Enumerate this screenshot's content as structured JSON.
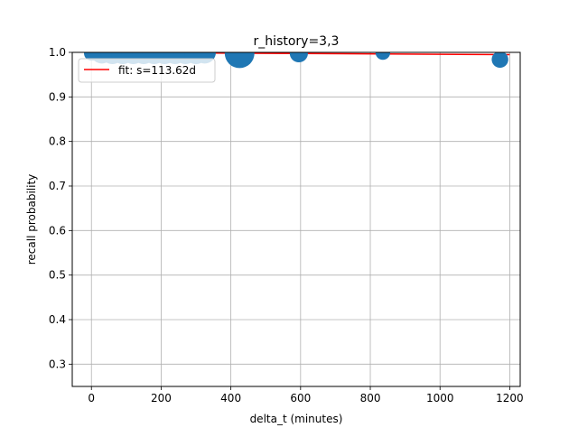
{
  "chart_data": {
    "type": "scatter",
    "title": "r_history=3,3",
    "xlabel": "delta_t (minutes)",
    "ylabel": "recall probability",
    "xlim": [
      -55,
      1230
    ],
    "ylim": [
      0.25,
      1.0
    ],
    "x_ticks": [
      0,
      200,
      400,
      600,
      800,
      1000,
      1200
    ],
    "x_tick_labels": [
      "0",
      "200",
      "400",
      "600",
      "800",
      "1000",
      "1200"
    ],
    "y_ticks": [
      0.3,
      0.4,
      0.5,
      0.6,
      0.7,
      0.8,
      0.9,
      1.0
    ],
    "y_tick_labels": [
      "0.3",
      "0.4",
      "0.5",
      "0.6",
      "0.7",
      "0.8",
      "0.9",
      "1.0"
    ],
    "grid": true,
    "legend": {
      "position": "upper-left",
      "entries": [
        {
          "label": "fit: s=113.62d",
          "color": "#ff0000"
        }
      ]
    },
    "colors": {
      "points": "#1f77b4",
      "fit": "#ff0000"
    },
    "series": [
      {
        "type": "scatter",
        "points": [
          {
            "x": 0,
            "y": 0.998,
            "weight": 4
          },
          {
            "x": 10,
            "y": 1.0,
            "weight": 5
          },
          {
            "x": 30,
            "y": 1.0,
            "weight": 9
          },
          {
            "x": 60,
            "y": 1.0,
            "weight": 10
          },
          {
            "x": 90,
            "y": 1.0,
            "weight": 10
          },
          {
            "x": 120,
            "y": 1.0,
            "weight": 10
          },
          {
            "x": 150,
            "y": 1.0,
            "weight": 10
          },
          {
            "x": 180,
            "y": 1.0,
            "weight": 10
          },
          {
            "x": 210,
            "y": 1.0,
            "weight": 10
          },
          {
            "x": 240,
            "y": 1.0,
            "weight": 10
          },
          {
            "x": 270,
            "y": 1.0,
            "weight": 10
          },
          {
            "x": 300,
            "y": 1.0,
            "weight": 10
          },
          {
            "x": 325,
            "y": 1.0,
            "weight": 9
          },
          {
            "x": 425,
            "y": 0.998,
            "weight": 16
          },
          {
            "x": 595,
            "y": 0.998,
            "weight": 6
          },
          {
            "x": 836,
            "y": 1.0,
            "weight": 4
          },
          {
            "x": 1172,
            "y": 0.984,
            "weight": 5
          }
        ]
      },
      {
        "type": "line",
        "name": "fit: s=113.62d",
        "x": [
          0,
          1200
        ],
        "y": [
          1.0,
          0.9949
        ]
      }
    ]
  }
}
